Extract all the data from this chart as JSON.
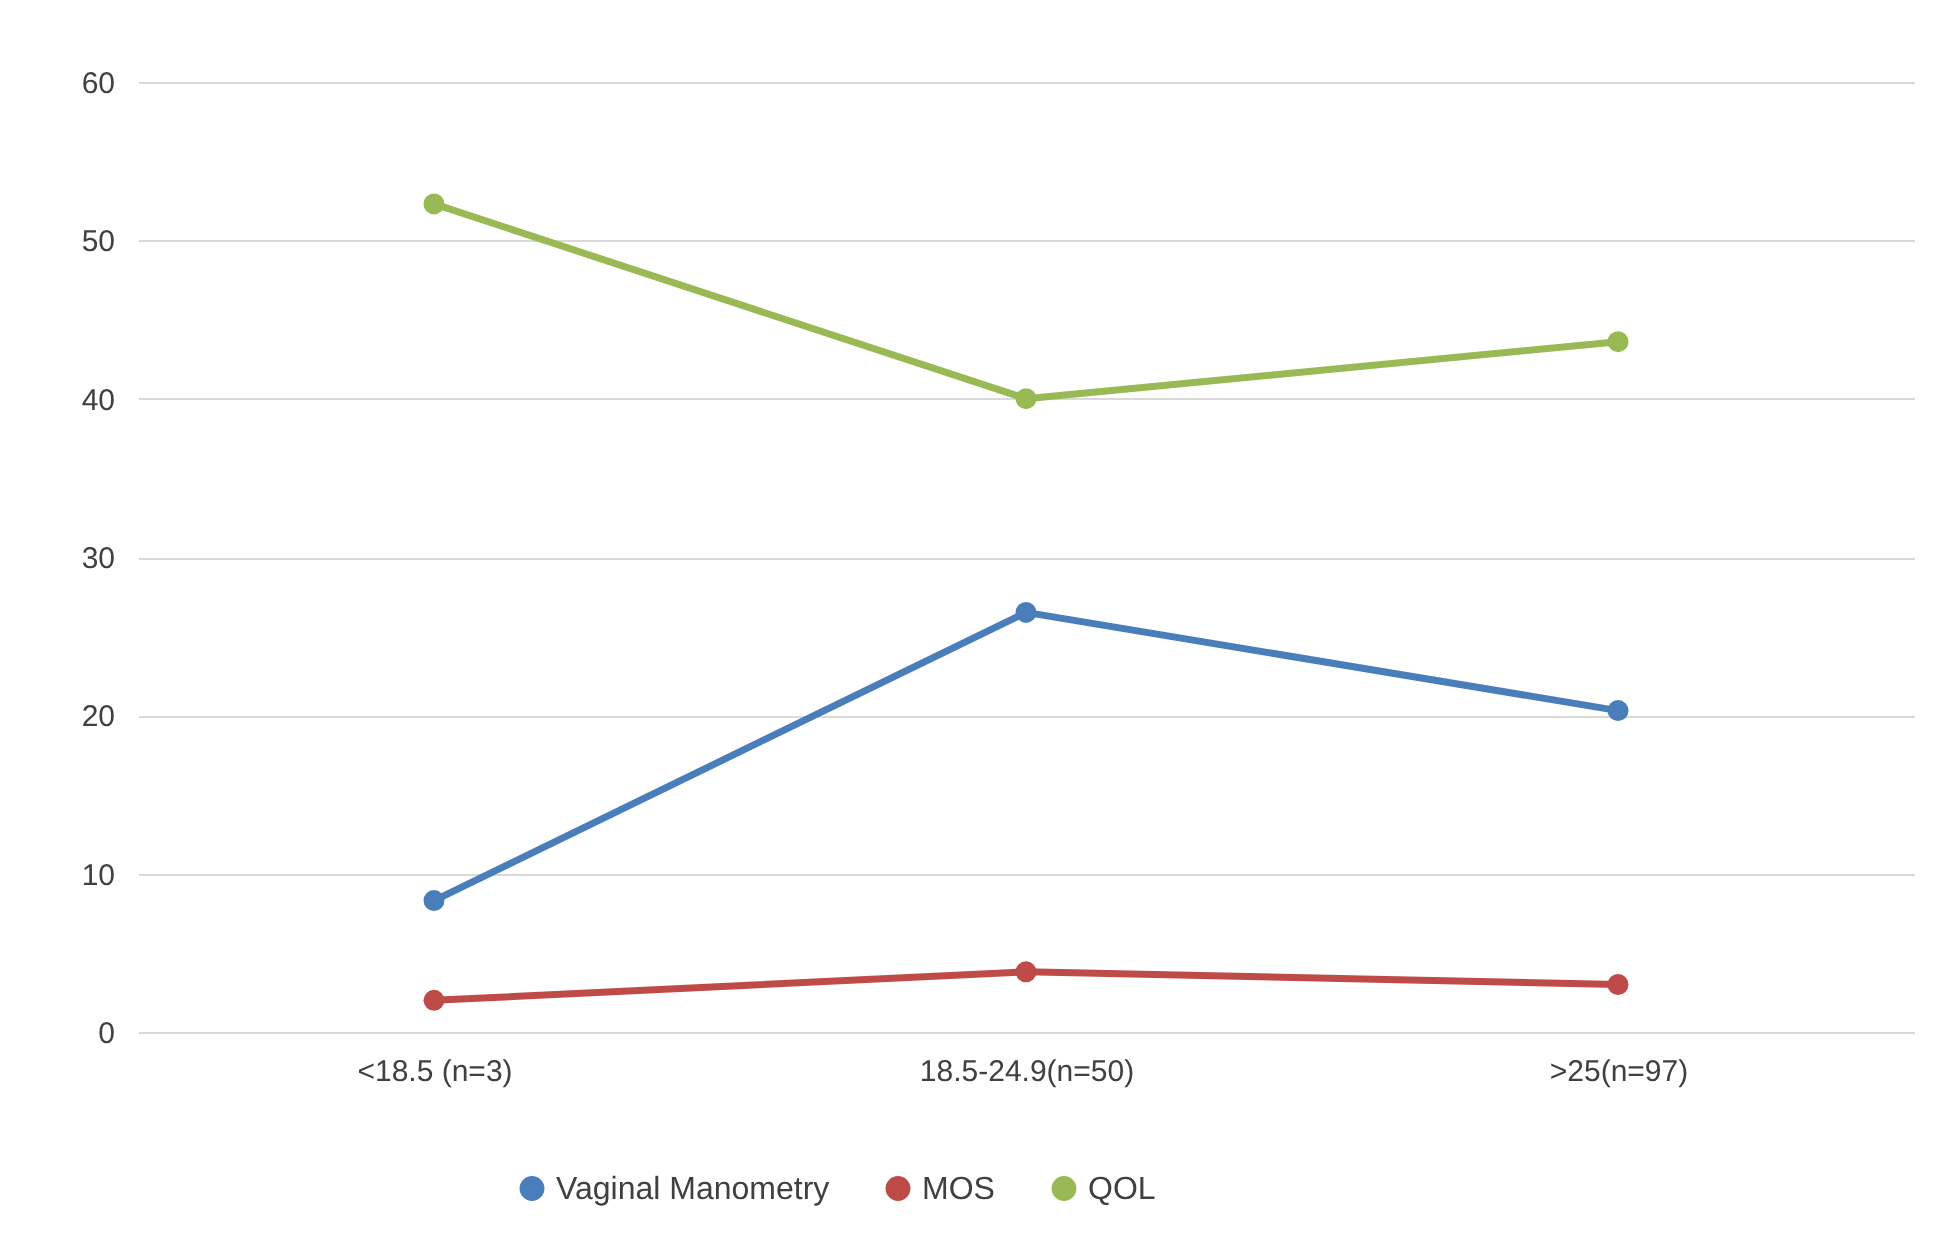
{
  "chart_data": {
    "type": "line",
    "categories": [
      "<18.5 (n=3)",
      "18.5-24.9(n=50)",
      ">25(n=97)"
    ],
    "series": [
      {
        "name": "Vaginal Manometry",
        "color": "#4a7ebb",
        "values": [
          8.3,
          26.5,
          20.3
        ]
      },
      {
        "name": "MOS",
        "color": "#be4b48",
        "values": [
          2.0,
          3.8,
          3.0
        ]
      },
      {
        "name": "QOL",
        "color": "#98b954",
        "values": [
          52.3,
          40.0,
          43.6
        ]
      }
    ],
    "ylim": [
      0,
      60
    ],
    "yticks": [
      0,
      10,
      20,
      30,
      40,
      50,
      60
    ],
    "grid": "y",
    "legend": "bottom",
    "marker": "circle",
    "line_style": "solid"
  }
}
